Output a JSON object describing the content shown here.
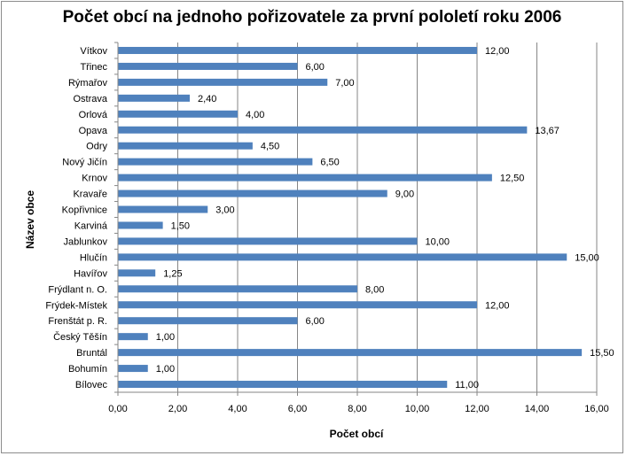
{
  "chart_data": {
    "type": "bar",
    "orientation": "horizontal",
    "title": "Počet obcí na jednoho pořizovatele za první pololetí roku 2006",
    "xlabel": "Počet obcí",
    "ylabel": "Název obce",
    "xlim": [
      0,
      16
    ],
    "xticks": [
      "0,00",
      "2,00",
      "4,00",
      "6,00",
      "8,00",
      "10,00",
      "12,00",
      "14,00",
      "16,00"
    ],
    "grid": "vertical",
    "legend": "none",
    "bar_color": "#4f81bd",
    "categories": [
      "Vítkov",
      "Třinec",
      "Rýmařov",
      "Ostrava",
      "Orlová",
      "Opava",
      "Odry",
      "Nový Jičín",
      "Krnov",
      "Kravaře",
      "Kopřivnice",
      "Karviná",
      "Jablunkov",
      "Hlučín",
      "Havířov",
      "Frýdlant n. O.",
      "Frýdek-Místek",
      "Frenštát p. R.",
      "Český Těšín",
      "Bruntál",
      "Bohumín",
      "Bílovec"
    ],
    "values": [
      12.0,
      6.0,
      7.0,
      2.4,
      4.0,
      13.67,
      4.5,
      6.5,
      12.5,
      9.0,
      3.0,
      1.5,
      10.0,
      15.0,
      1.25,
      8.0,
      12.0,
      6.0,
      1.0,
      15.5,
      1.0,
      11.0
    ],
    "value_labels": [
      "12,00",
      "6,00",
      "7,00",
      "2,40",
      "4,00",
      "13,67",
      "4,50",
      "6,50",
      "12,50",
      "9,00",
      "3,00",
      "1,50",
      "10,00",
      "15,00",
      "1,25",
      "8,00",
      "12,00",
      "6,00",
      "1,00",
      "15,50",
      "1,00",
      "11,00"
    ]
  }
}
